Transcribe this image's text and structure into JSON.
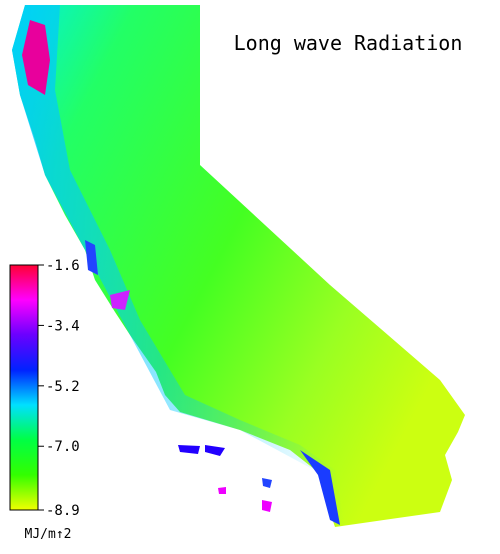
{
  "title": "Long wave Radiation",
  "colorbar": {
    "lim": [
      -8.9,
      -1.6
    ],
    "ticks": [
      -1.6,
      -3.4,
      -5.2,
      {
        "value": -7,
        "label": "-7.0"
      },
      -8.9
    ],
    "unit": "MJ/m↑2",
    "colors": [
      "#ff0033",
      "#ff00ff",
      "#6a00ff",
      "#0022ff",
      "#00e0ff",
      "#00ff44",
      "#33ff00",
      "#f0ff00"
    ]
  }
}
